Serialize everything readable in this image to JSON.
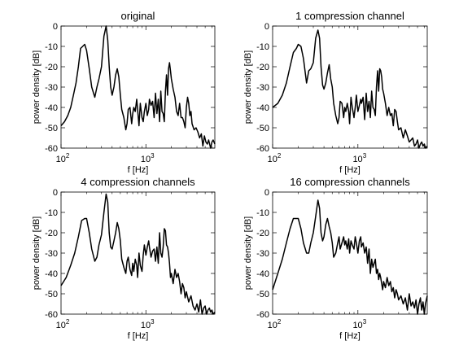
{
  "chart_data": [
    {
      "type": "line",
      "title": "original",
      "xlabel": "f [Hz]",
      "ylabel": "power density [dB]",
      "x_scale": "log",
      "xlim": [
        100,
        6500
      ],
      "ylim": [
        -60,
        0
      ],
      "x_ticks": [
        100,
        1000
      ],
      "x_tick_labels": [
        "10",
        "10"
      ],
      "x_tick_exponents": [
        "2",
        "3"
      ],
      "y_ticks": [
        0,
        -10,
        -20,
        -30,
        -40,
        -50,
        -60
      ],
      "y_tick_labels": [
        "0",
        "-10",
        "-20",
        "-30",
        "-40",
        "-50",
        "-60"
      ],
      "grid": false,
      "series": [
        {
          "x": [
            100,
            110,
            120,
            130,
            140,
            150,
            160,
            170,
            180,
            190,
            200,
            215,
            230,
            250,
            265,
            280,
            300,
            320,
            340,
            355,
            370,
            385,
            400,
            420,
            440,
            460,
            480,
            500,
            520,
            550,
            580,
            600,
            620,
            650,
            680,
            700,
            720,
            750,
            780,
            800,
            830,
            860,
            900,
            930,
            960,
            1000,
            1040,
            1080,
            1100,
            1150,
            1200,
            1250,
            1300,
            1350,
            1400,
            1450,
            1500,
            1550,
            1600,
            1650,
            1700,
            1750,
            1800,
            1850,
            1900,
            1950,
            2000,
            2100,
            2200,
            2300,
            2400,
            2500,
            2600,
            2700,
            2800,
            2900,
            3000,
            3100,
            3200,
            3300,
            3400,
            3500,
            3700,
            3900,
            4100,
            4300,
            4500,
            4700,
            4900,
            5100,
            5300,
            5500,
            5800,
            6000,
            6200,
            6500
          ],
          "y": [
            -49,
            -47,
            -44,
            -40,
            -34,
            -28,
            -20,
            -11,
            -10,
            -9,
            -12,
            -21,
            -30,
            -35,
            -30,
            -26,
            -20,
            -5,
            0,
            -7,
            -20,
            -30,
            -34,
            -30,
            -24,
            -21,
            -25,
            -34,
            -41,
            -45,
            -51,
            -48,
            -41,
            -40,
            -48,
            -43,
            -40,
            -42,
            -36,
            -41,
            -49,
            -38,
            -45,
            -47,
            -42,
            -38,
            -44,
            -41,
            -36,
            -39,
            -37,
            -45,
            -33,
            -43,
            -36,
            -47,
            -32,
            -42,
            -43,
            -47,
            -32,
            -24,
            -34,
            -21,
            -18,
            -22,
            -26,
            -31,
            -35,
            -42,
            -44,
            -38,
            -45,
            -45,
            -47,
            -50,
            -40,
            -35,
            -38,
            -44,
            -42,
            -48,
            -51,
            -50,
            -52,
            -55,
            -53,
            -59,
            -54,
            -57,
            -58,
            -56,
            -60,
            -57,
            -56,
            -58
          ]
        }
      ]
    },
    {
      "type": "line",
      "title": "1 compression channel",
      "xlabel": "f [Hz]",
      "ylabel": "power density [dB]",
      "x_scale": "log",
      "xlim": [
        100,
        6500
      ],
      "ylim": [
        -60,
        0
      ],
      "x_ticks": [
        100,
        1000
      ],
      "x_tick_labels": [
        "10",
        "10"
      ],
      "x_tick_exponents": [
        "2",
        "3"
      ],
      "y_ticks": [
        0,
        -10,
        -20,
        -30,
        -40,
        -50,
        -60
      ],
      "y_tick_labels": [
        "0",
        "-10",
        "-20",
        "-30",
        "-40",
        "-50",
        "-60"
      ],
      "grid": false,
      "series": [
        {
          "x": [
            100,
            115,
            130,
            145,
            160,
            175,
            190,
            200,
            215,
            230,
            250,
            265,
            280,
            300,
            320,
            340,
            355,
            370,
            385,
            400,
            420,
            440,
            460,
            480,
            500,
            520,
            550,
            580,
            600,
            620,
            650,
            680,
            700,
            720,
            750,
            780,
            800,
            830,
            860,
            900,
            930,
            960,
            1000,
            1040,
            1080,
            1100,
            1150,
            1200,
            1250,
            1300,
            1350,
            1400,
            1450,
            1500,
            1550,
            1600,
            1650,
            1700,
            1750,
            1800,
            1850,
            1900,
            1950,
            2000,
            2100,
            2200,
            2300,
            2400,
            2500,
            2600,
            2700,
            2800,
            2900,
            3000,
            3200,
            3400,
            3600,
            3800,
            4000,
            4200,
            4400,
            4600,
            4800,
            5000,
            5200,
            5400,
            5600,
            5800,
            6000,
            6200,
            6500
          ],
          "y": [
            -40,
            -38,
            -34,
            -28,
            -20,
            -13,
            -11,
            -9,
            -10,
            -16,
            -28,
            -22,
            -21,
            -18,
            -6,
            -2,
            -6,
            -20,
            -29,
            -31,
            -28,
            -23,
            -19,
            -26,
            -30,
            -38,
            -44,
            -48,
            -45,
            -37,
            -38,
            -45,
            -40,
            -42,
            -38,
            -42,
            -48,
            -35,
            -40,
            -45,
            -40,
            -34,
            -42,
            -39,
            -36,
            -38,
            -35,
            -46,
            -33,
            -42,
            -37,
            -45,
            -32,
            -40,
            -41,
            -44,
            -30,
            -22,
            -32,
            -21,
            -22,
            -25,
            -31,
            -33,
            -38,
            -44,
            -40,
            -44,
            -43,
            -49,
            -41,
            -42,
            -47,
            -51,
            -50,
            -55,
            -51,
            -54,
            -57,
            -56,
            -55,
            -59,
            -58,
            -56,
            -60,
            -58,
            -57,
            -59,
            -58,
            -60,
            -59
          ]
        }
      ]
    },
    {
      "type": "line",
      "title": "4  compression channels",
      "xlabel": "f [Hz]",
      "ylabel": "power density [dB]",
      "x_scale": "log",
      "xlim": [
        100,
        6500
      ],
      "ylim": [
        -60,
        0
      ],
      "x_ticks": [
        100,
        1000
      ],
      "x_tick_labels": [
        "10",
        "10"
      ],
      "x_tick_exponents": [
        "2",
        "3"
      ],
      "y_ticks": [
        0,
        -10,
        -20,
        -30,
        -40,
        -50,
        -60
      ],
      "y_tick_labels": [
        "0",
        "-10",
        "-20",
        "-30",
        "-40",
        "-50",
        "-60"
      ],
      "grid": false,
      "series": [
        {
          "x": [
            100,
            115,
            130,
            145,
            160,
            175,
            190,
            200,
            215,
            230,
            250,
            265,
            280,
            300,
            320,
            340,
            355,
            370,
            385,
            400,
            420,
            440,
            460,
            480,
            500,
            520,
            550,
            580,
            600,
            620,
            650,
            680,
            700,
            720,
            750,
            780,
            800,
            830,
            860,
            900,
            930,
            960,
            1000,
            1040,
            1080,
            1100,
            1150,
            1200,
            1250,
            1300,
            1350,
            1400,
            1450,
            1500,
            1550,
            1600,
            1650,
            1700,
            1750,
            1800,
            1850,
            1900,
            1950,
            2000,
            2100,
            2200,
            2300,
            2400,
            2500,
            2600,
            2700,
            2800,
            2900,
            3000,
            3200,
            3400,
            3600,
            3800,
            4000,
            4200,
            4400,
            4600,
            4800,
            5000,
            5200,
            5400,
            5600,
            5800,
            6000,
            6200,
            6500
          ],
          "y": [
            -46,
            -42,
            -36,
            -30,
            -22,
            -14,
            -13,
            -13,
            -20,
            -28,
            -34,
            -32,
            -26,
            -21,
            -10,
            -1,
            -5,
            -20,
            -27,
            -28,
            -24,
            -20,
            -15,
            -18,
            -24,
            -33,
            -37,
            -40,
            -34,
            -32,
            -38,
            -41,
            -35,
            -39,
            -33,
            -36,
            -42,
            -30,
            -36,
            -39,
            -31,
            -26,
            -31,
            -27,
            -24,
            -27,
            -32,
            -29,
            -28,
            -34,
            -27,
            -35,
            -20,
            -30,
            -32,
            -27,
            -18,
            -19,
            -26,
            -27,
            -30,
            -35,
            -42,
            -40,
            -45,
            -38,
            -42,
            -40,
            -44,
            -50,
            -45,
            -47,
            -52,
            -49,
            -54,
            -51,
            -56,
            -58,
            -55,
            -59,
            -53,
            -60,
            -57,
            -56,
            -60,
            -58,
            -57,
            -59,
            -58,
            -60,
            -59
          ]
        }
      ]
    },
    {
      "type": "line",
      "title": "16 compression channels",
      "xlabel": "f [Hz]",
      "ylabel": "power density [dB]",
      "x_scale": "log",
      "xlim": [
        100,
        6500
      ],
      "ylim": [
        -60,
        0
      ],
      "x_ticks": [
        100,
        1000
      ],
      "x_tick_labels": [
        "10",
        "10"
      ],
      "x_tick_exponents": [
        "2",
        "3"
      ],
      "y_ticks": [
        0,
        -10,
        -20,
        -30,
        -40,
        -50,
        -60
      ],
      "y_tick_labels": [
        "0",
        "-10",
        "-20",
        "-30",
        "-40",
        "-50",
        "-60"
      ],
      "grid": false,
      "series": [
        {
          "x": [
            100,
            115,
            130,
            145,
            160,
            175,
            190,
            200,
            215,
            230,
            250,
            265,
            280,
            300,
            320,
            340,
            355,
            370,
            385,
            400,
            420,
            440,
            460,
            480,
            500,
            520,
            550,
            580,
            600,
            620,
            650,
            680,
            700,
            720,
            750,
            780,
            800,
            830,
            860,
            900,
            930,
            960,
            1000,
            1040,
            1080,
            1100,
            1150,
            1200,
            1250,
            1300,
            1350,
            1400,
            1450,
            1500,
            1550,
            1600,
            1650,
            1700,
            1750,
            1800,
            1850,
            1900,
            1950,
            2000,
            2100,
            2200,
            2300,
            2400,
            2500,
            2600,
            2700,
            2800,
            2900,
            3000,
            3200,
            3400,
            3600,
            3800,
            4000,
            4200,
            4400,
            4600,
            4800,
            5000,
            5200,
            5400,
            5600,
            5800,
            6000,
            6200,
            6500
          ],
          "y": [
            -48,
            -40,
            -33,
            -25,
            -18,
            -13,
            -13,
            -13,
            -18,
            -25,
            -30,
            -30,
            -25,
            -20,
            -12,
            -4,
            -8,
            -20,
            -24,
            -22,
            -16,
            -13,
            -17,
            -20,
            -25,
            -32,
            -30,
            -25,
            -22,
            -28,
            -25,
            -22,
            -26,
            -24,
            -28,
            -23,
            -30,
            -24,
            -26,
            -28,
            -22,
            -25,
            -30,
            -24,
            -22,
            -27,
            -25,
            -30,
            -27,
            -35,
            -28,
            -40,
            -33,
            -37,
            -35,
            -33,
            -40,
            -38,
            -43,
            -40,
            -42,
            -45,
            -48,
            -44,
            -47,
            -42,
            -46,
            -44,
            -49,
            -47,
            -52,
            -48,
            -50,
            -53,
            -51,
            -55,
            -52,
            -58,
            -50,
            -56,
            -54,
            -57,
            -53,
            -60,
            -55,
            -52,
            -58,
            -54,
            -60,
            -55,
            -51
          ]
        }
      ]
    }
  ]
}
